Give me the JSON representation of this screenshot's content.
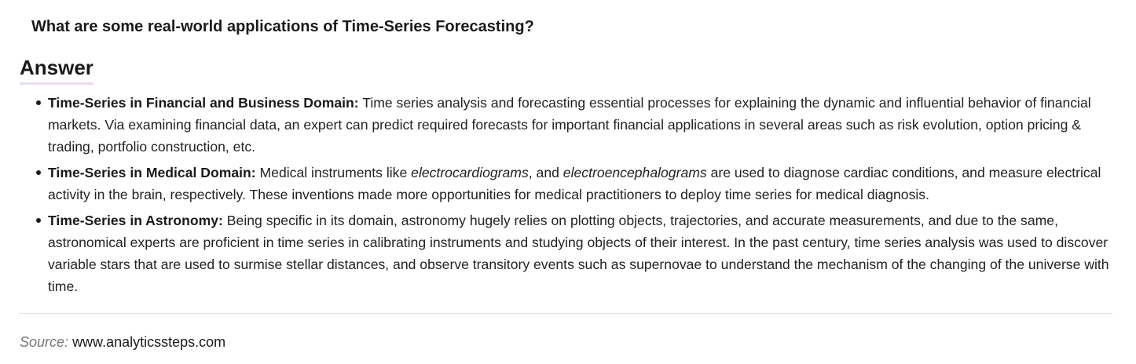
{
  "question": "What are some real-world applications of Time-Series Forecasting?",
  "answer_heading": "Answer",
  "bullets": [
    {
      "label": "Time-Series in Financial and Business Domain:",
      "text": " Time series analysis and forecasting essential processes for explaining the dynamic and influential behavior of financial markets. Via examining financial data, an expert can predict required forecasts for important financial applications in several areas such as risk evolution, option pricing & trading, portfolio construction, etc."
    },
    {
      "label": "Time-Series in Medical Domain:",
      "text_1": " Medical instruments like ",
      "italic_1": "electrocardiograms",
      "text_2": ", and ",
      "italic_2": "electroencephalograms",
      "text_3": " are used to diagnose cardiac conditions, and measure electrical activity in the brain, respectively. These inventions made more opportunities for medical practitioners to deploy time series for medical diagnosis."
    },
    {
      "label": "Time-Series in Astronomy:",
      "text": " Being specific in its domain, astronomy hugely relies on plotting objects, trajectories, and accurate measurements, and due to the same, astronomical experts are proficient in time series in calibrating instruments and studying objects of their interest. In the past century, time series analysis was used to discover variable stars that are used to surmise stellar distances, and observe transitory events such as supernovae to understand the mechanism of the changing of the universe with time."
    }
  ],
  "source": {
    "label": "Source:",
    "link_text": "www.analyticssteps.com"
  }
}
